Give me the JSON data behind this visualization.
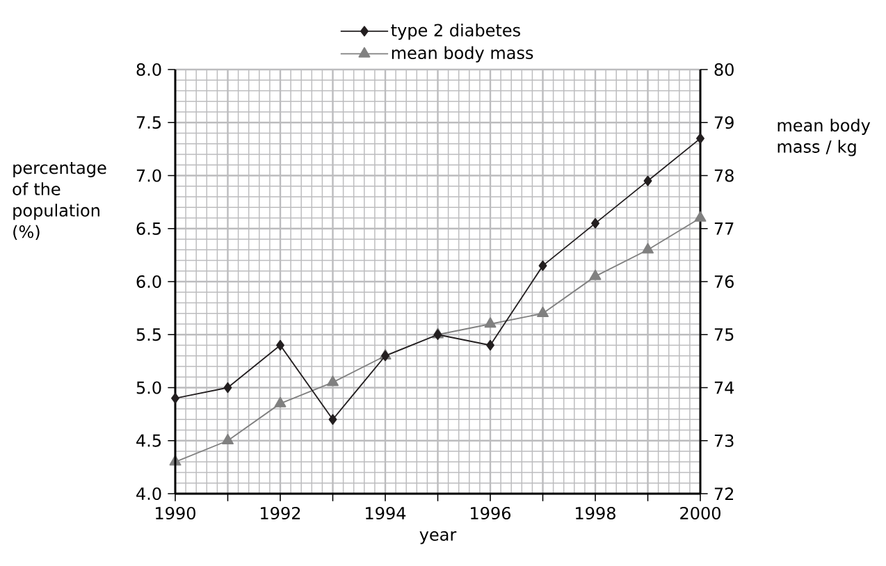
{
  "chart_data": {
    "type": "line",
    "x": [
      1990,
      1991,
      1992,
      1993,
      1994,
      1995,
      1996,
      1997,
      1998,
      1999,
      2000
    ],
    "series": [
      {
        "name": "type 2 diabetes",
        "color": "#231f20",
        "marker": "diamond",
        "values": [
          4.9,
          5.0,
          5.4,
          4.7,
          5.3,
          5.5,
          5.4,
          6.15,
          6.55,
          6.95,
          7.35
        ]
      },
      {
        "name": "mean body mass",
        "color": "#808080",
        "marker": "triangle",
        "axis": "y2",
        "values": [
          72.6,
          73.0,
          73.7,
          74.1,
          74.6,
          75.0,
          75.2,
          75.4,
          76.1,
          76.6,
          77.2
        ]
      }
    ],
    "xlabel": "year",
    "ylabel": "percentage of the population (%)",
    "y2label": "mean body mass / kg",
    "xlim": [
      1990,
      2000
    ],
    "xticks": [
      1990,
      {
        "value": 1991,
        "label": null
      },
      1992,
      {
        "value": 1993,
        "label": null
      },
      1994,
      {
        "value": 1995,
        "label": null
      },
      1996,
      {
        "value": 1997,
        "label": null
      },
      1998,
      {
        "value": 1999,
        "label": null
      },
      2000
    ],
    "ylim": [
      4,
      8
    ],
    "yticks": [
      {
        "value": 4,
        "label": "4.0"
      },
      {
        "value": 4.5,
        "label": "4.5"
      },
      {
        "value": 5,
        "label": "5.0"
      },
      {
        "value": 5.5,
        "label": "5.5"
      },
      {
        "value": 6,
        "label": "6.0"
      },
      {
        "value": 6.5,
        "label": "6.5"
      },
      {
        "value": 7,
        "label": "7.0"
      },
      {
        "value": 7.5,
        "label": "7.5"
      },
      {
        "value": 8,
        "label": "8.0"
      }
    ],
    "y2lim": [
      72,
      80
    ],
    "y2ticks": [
      72,
      73,
      74,
      75,
      76,
      77,
      78,
      79,
      80
    ],
    "grid": true,
    "legend": "top"
  }
}
